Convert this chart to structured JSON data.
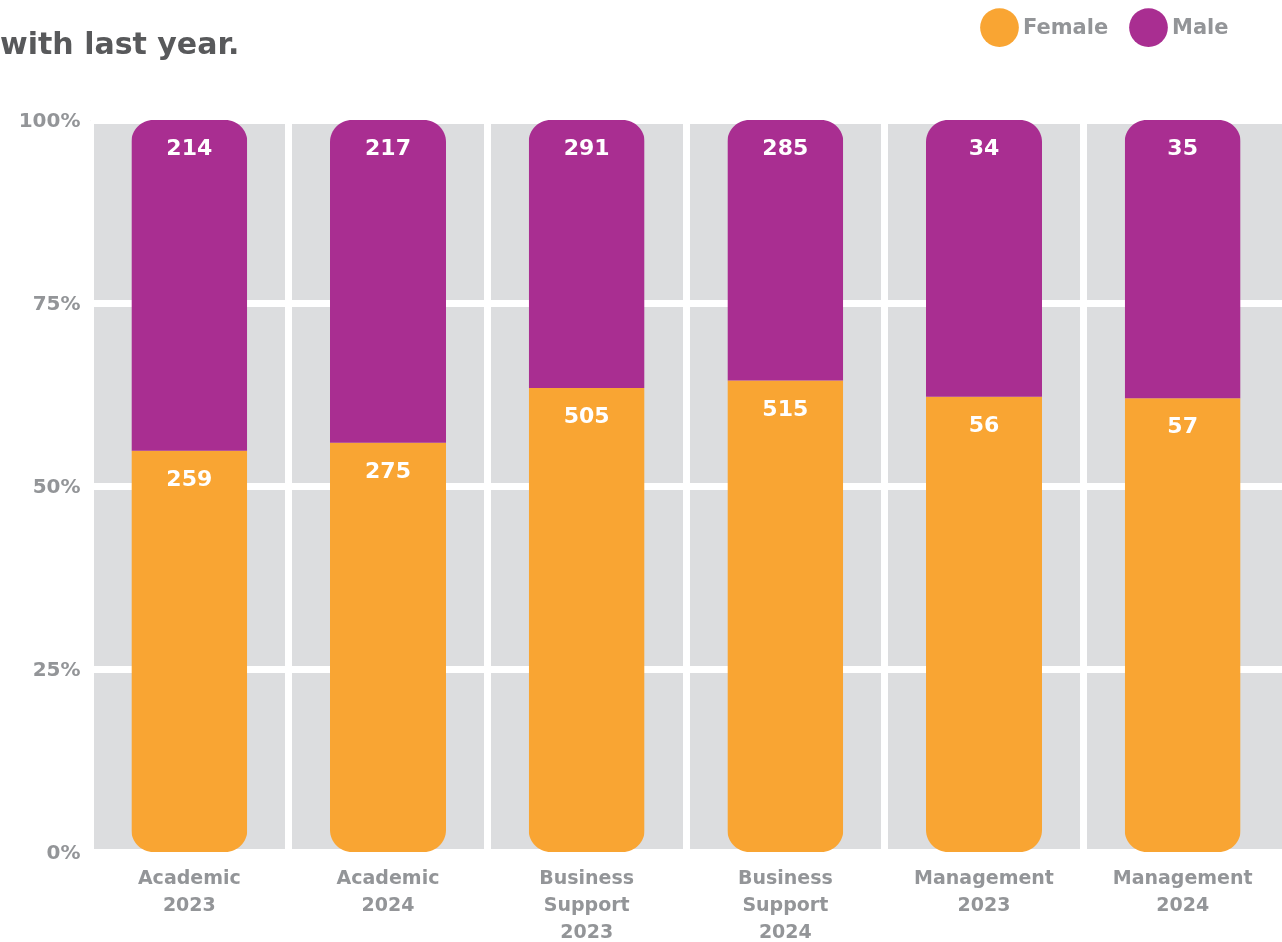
{
  "chart_data": {
    "type": "bar",
    "title": "with last year.",
    "stacked": true,
    "categories": [
      "Academic 2023",
      "Academic 2024",
      "Business Support 2023",
      "Business Support 2024",
      "Management 2023",
      "Management 2024"
    ],
    "series": [
      {
        "name": "Female",
        "color": "#f9a533",
        "values": [
          54.8,
          55.9,
          63.4,
          64.4,
          62.2,
          62.0
        ]
      },
      {
        "name": "Male",
        "color": "#a92e91",
        "values": [
          45.2,
          44.1,
          36.6,
          35.6,
          37.8,
          38.0
        ]
      }
    ],
    "annotations": [
      {
        "text": "259",
        "x": "Academic 2023",
        "y": 54.8
      },
      {
        "text": "275",
        "x": "Academic 2024",
        "y": 55.9
      },
      {
        "text": "505",
        "x": "Business Support 2023",
        "y": 63.4
      },
      {
        "text": "515",
        "x": "Business Support 2024",
        "y": 64.4
      },
      {
        "text": "56",
        "x": "Management 2023",
        "y": 62.2
      },
      {
        "text": "57",
        "x": "Management 2024",
        "y": 62.0
      },
      {
        "text": "214",
        "x": "Academic 2023",
        "y": 100
      },
      {
        "text": "217",
        "x": "Academic 2024",
        "y": 100
      },
      {
        "text": "291",
        "x": "Business Support 2023",
        "y": 100
      },
      {
        "text": "285",
        "x": "Business Support 2024",
        "y": 100
      },
      {
        "text": "34",
        "x": "Management 2023",
        "y": 100
      },
      {
        "text": "35",
        "x": "Management 2024",
        "y": 100
      }
    ],
    "ylim": [
      0,
      100
    ],
    "yticks": [
      {
        "value": 0,
        "label": "0%"
      },
      {
        "value": 25,
        "label": "25%"
      },
      {
        "value": 50,
        "label": "50%"
      },
      {
        "value": 75,
        "label": "75%"
      },
      {
        "value": 100,
        "label": "100%"
      }
    ],
    "grid": true,
    "legend": "top right"
  }
}
